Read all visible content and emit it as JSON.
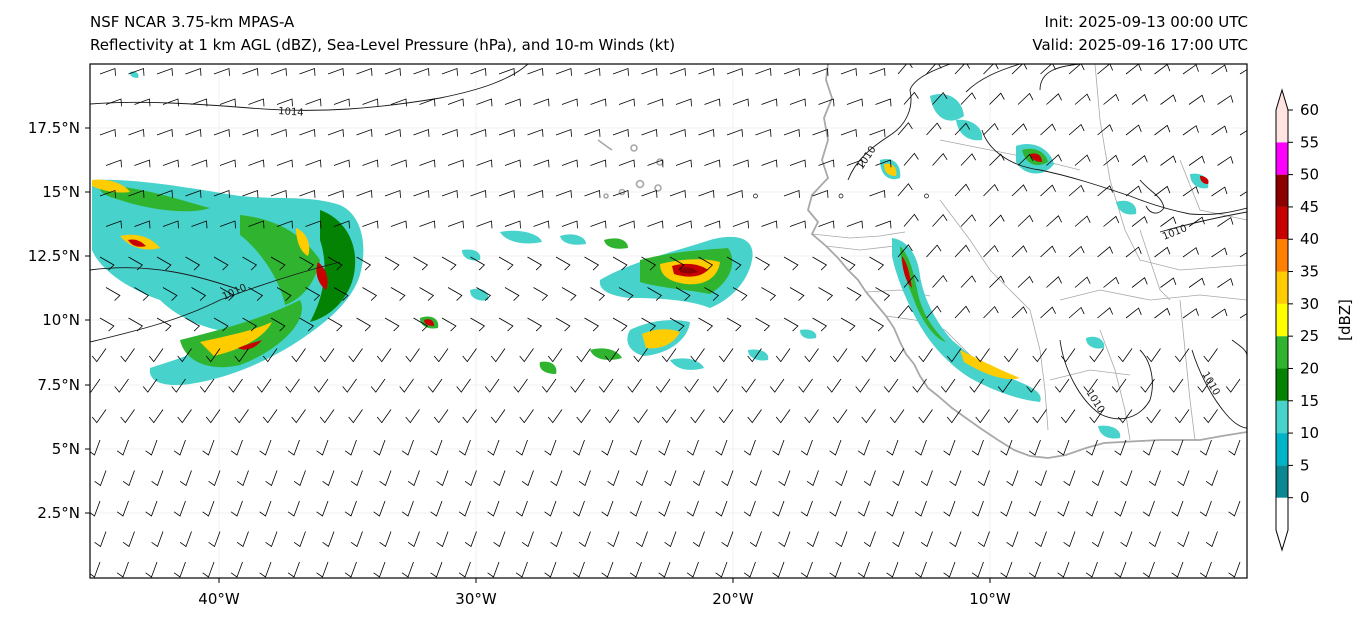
{
  "header": {
    "model": "NSF NCAR 3.75-km MPAS-A",
    "fields": "Reflectivity at 1 km AGL (dBZ), Sea-Level Pressure (hPa), and 10-m Winds (kt)",
    "init": "Init: 2025-09-13 00:00 UTC",
    "valid": "Valid: 2025-09-16 17:00 UTC"
  },
  "map": {
    "lat_ticks": [
      "17.5°N",
      "15°N",
      "12.5°N",
      "10°N",
      "7.5°N",
      "5°N",
      "2.5°N"
    ],
    "lon_ticks": [
      "40°W",
      "30°W",
      "20°W",
      "10°W"
    ],
    "isobar_labels": [
      "1014",
      "1010",
      "1010",
      "1010",
      "1010",
      "1010"
    ]
  },
  "colorbar": {
    "label": "[dBZ]",
    "ticks": [
      "0",
      "5",
      "10",
      "15",
      "20",
      "25",
      "30",
      "35",
      "40",
      "45",
      "50",
      "55",
      "60"
    ],
    "colors": [
      "#ffffff",
      "#0a8790",
      "#00b4c8",
      "#48d2cc",
      "#048204",
      "#30b430",
      "#ffff00",
      "#ffcc00",
      "#ff8000",
      "#c80000",
      "#8c0000",
      "#ff00ff",
      "#ffe4e1"
    ]
  }
}
